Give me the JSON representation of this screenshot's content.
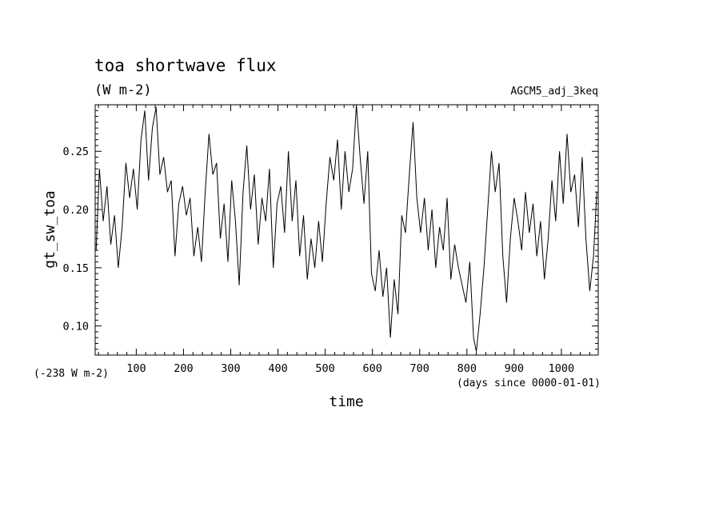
{
  "chart_data": {
    "type": "line",
    "title": "toa shortwave flux",
    "units": "(W m-2)",
    "experiment": "AGCM5_adj_3keq",
    "xlabel": "time",
    "x_units": "(days since 0000-01-01)",
    "ylabel": "gt_sw_toa",
    "offset_label": "(-238 W m-2)",
    "xlim": [
      13,
      1078
    ],
    "ylim": [
      0.075,
      0.29
    ],
    "x_ticks": [
      "100",
      "200",
      "300",
      "400",
      "500",
      "600",
      "700",
      "800",
      "900",
      "1000"
    ],
    "y_ticks": [
      "0.25",
      "0.20",
      "0.15",
      "0.10"
    ],
    "grid": false,
    "series": [
      {
        "color": "#000000",
        "points": [
          [
            15,
            0.165
          ],
          [
            22,
            0.235
          ],
          [
            30,
            0.19
          ],
          [
            38,
            0.22
          ],
          [
            46,
            0.17
          ],
          [
            54,
            0.195
          ],
          [
            62,
            0.15
          ],
          [
            70,
            0.185
          ],
          [
            78,
            0.24
          ],
          [
            86,
            0.21
          ],
          [
            94,
            0.235
          ],
          [
            102,
            0.2
          ],
          [
            110,
            0.26
          ],
          [
            118,
            0.285
          ],
          [
            126,
            0.225
          ],
          [
            134,
            0.27
          ],
          [
            142,
            0.288
          ],
          [
            150,
            0.23
          ],
          [
            158,
            0.245
          ],
          [
            166,
            0.215
          ],
          [
            174,
            0.225
          ],
          [
            182,
            0.16
          ],
          [
            190,
            0.205
          ],
          [
            198,
            0.22
          ],
          [
            206,
            0.195
          ],
          [
            214,
            0.21
          ],
          [
            222,
            0.16
          ],
          [
            230,
            0.185
          ],
          [
            238,
            0.155
          ],
          [
            246,
            0.215
          ],
          [
            254,
            0.265
          ],
          [
            262,
            0.23
          ],
          [
            270,
            0.24
          ],
          [
            278,
            0.175
          ],
          [
            286,
            0.205
          ],
          [
            294,
            0.155
          ],
          [
            302,
            0.225
          ],
          [
            310,
            0.19
          ],
          [
            318,
            0.135
          ],
          [
            326,
            0.215
          ],
          [
            334,
            0.255
          ],
          [
            342,
            0.2
          ],
          [
            350,
            0.23
          ],
          [
            358,
            0.17
          ],
          [
            366,
            0.21
          ],
          [
            374,
            0.19
          ],
          [
            382,
            0.235
          ],
          [
            390,
            0.15
          ],
          [
            398,
            0.205
          ],
          [
            406,
            0.22
          ],
          [
            414,
            0.18
          ],
          [
            422,
            0.25
          ],
          [
            430,
            0.19
          ],
          [
            438,
            0.225
          ],
          [
            446,
            0.16
          ],
          [
            454,
            0.195
          ],
          [
            462,
            0.14
          ],
          [
            470,
            0.175
          ],
          [
            478,
            0.15
          ],
          [
            486,
            0.19
          ],
          [
            494,
            0.155
          ],
          [
            502,
            0.205
          ],
          [
            510,
            0.245
          ],
          [
            518,
            0.225
          ],
          [
            526,
            0.26
          ],
          [
            534,
            0.2
          ],
          [
            542,
            0.25
          ],
          [
            550,
            0.215
          ],
          [
            558,
            0.235
          ],
          [
            566,
            0.29
          ],
          [
            574,
            0.245
          ],
          [
            582,
            0.205
          ],
          [
            590,
            0.25
          ],
          [
            598,
            0.145
          ],
          [
            606,
            0.13
          ],
          [
            614,
            0.165
          ],
          [
            622,
            0.125
          ],
          [
            630,
            0.15
          ],
          [
            638,
            0.09
          ],
          [
            646,
            0.14
          ],
          [
            654,
            0.11
          ],
          [
            662,
            0.195
          ],
          [
            670,
            0.18
          ],
          [
            678,
            0.23
          ],
          [
            686,
            0.275
          ],
          [
            694,
            0.21
          ],
          [
            702,
            0.18
          ],
          [
            710,
            0.21
          ],
          [
            718,
            0.165
          ],
          [
            726,
            0.2
          ],
          [
            734,
            0.15
          ],
          [
            742,
            0.185
          ],
          [
            750,
            0.165
          ],
          [
            758,
            0.21
          ],
          [
            766,
            0.14
          ],
          [
            774,
            0.17
          ],
          [
            782,
            0.15
          ],
          [
            790,
            0.135
          ],
          [
            798,
            0.12
          ],
          [
            806,
            0.155
          ],
          [
            814,
            0.09
          ],
          [
            820,
            0.078
          ],
          [
            828,
            0.11
          ],
          [
            836,
            0.15
          ],
          [
            844,
            0.2
          ],
          [
            852,
            0.25
          ],
          [
            860,
            0.215
          ],
          [
            868,
            0.24
          ],
          [
            876,
            0.16
          ],
          [
            884,
            0.12
          ],
          [
            892,
            0.175
          ],
          [
            900,
            0.21
          ],
          [
            908,
            0.19
          ],
          [
            916,
            0.165
          ],
          [
            924,
            0.215
          ],
          [
            932,
            0.18
          ],
          [
            940,
            0.205
          ],
          [
            948,
            0.16
          ],
          [
            956,
            0.19
          ],
          [
            964,
            0.14
          ],
          [
            972,
            0.175
          ],
          [
            980,
            0.225
          ],
          [
            988,
            0.19
          ],
          [
            996,
            0.25
          ],
          [
            1004,
            0.205
          ],
          [
            1012,
            0.265
          ],
          [
            1020,
            0.215
          ],
          [
            1028,
            0.23
          ],
          [
            1036,
            0.185
          ],
          [
            1044,
            0.245
          ],
          [
            1052,
            0.175
          ],
          [
            1060,
            0.13
          ],
          [
            1068,
            0.16
          ],
          [
            1075,
            0.215
          ]
        ]
      }
    ]
  }
}
